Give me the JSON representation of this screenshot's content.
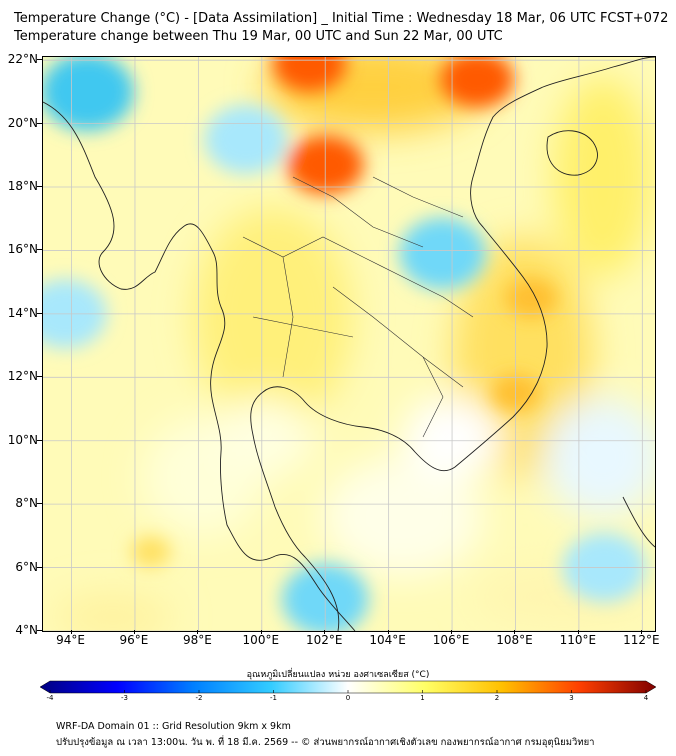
{
  "title": {
    "line1": "Temperature Change (°C) - [Data Assimilation] _ Initial Time : Wednesday 18 Mar, 06 UTC FCST+072",
    "line2": "Temperature change between Thu 19 Mar, 00 UTC and Sun 22 Mar, 00 UTC"
  },
  "map": {
    "lat_labels": [
      "22°N",
      "20°N",
      "18°N",
      "16°N",
      "14°N",
      "12°N",
      "10°N",
      "8°N",
      "6°N",
      "4°N"
    ],
    "lon_labels": [
      "94°E",
      "96°E",
      "98°E",
      "100°E",
      "102°E",
      "104°E",
      "106°E",
      "108°E",
      "110°E",
      "112°E"
    ],
    "lat_values": [
      22,
      20,
      18,
      16,
      14,
      12,
      10,
      8,
      6,
      4
    ],
    "lon_values": [
      94,
      96,
      98,
      100,
      102,
      104,
      106,
      108,
      110,
      112
    ],
    "extent": {
      "lon_min": 93.1,
      "lon_max": 112.4,
      "lat_min": 4.0,
      "lat_max": 22.1
    },
    "hotspots": [
      {
        "lon": 101.5,
        "lat": 21.9,
        "value": 2.6
      },
      {
        "lon": 102.0,
        "lat": 18.7,
        "value": 2.7
      },
      {
        "lon": 106.8,
        "lat": 21.4,
        "value": 2.6
      },
      {
        "lon": 108.5,
        "lat": 14.5,
        "value": 1.9
      },
      {
        "lon": 108.0,
        "lat": 11.5,
        "value": 1.8
      },
      {
        "lon": 96.5,
        "lat": 6.5,
        "value": 1.5
      }
    ],
    "coldspots": [
      {
        "lon": 94.5,
        "lat": 21.0,
        "value": -1.2
      },
      {
        "lon": 93.8,
        "lat": 14.0,
        "value": -0.9
      },
      {
        "lon": 105.7,
        "lat": 15.9,
        "value": -1.0
      },
      {
        "lon": 102.0,
        "lat": 5.0,
        "value": -1.0
      },
      {
        "lon": 99.5,
        "lat": 19.5,
        "value": -0.9
      },
      {
        "lon": 110.8,
        "lat": 6.0,
        "value": -0.9
      }
    ]
  },
  "colorbar": {
    "title": "อุณหภูมิเปลี่ยนแปลง หน่วย องศาเซลเซียส (°C)",
    "ticks": [
      "-4",
      "-3",
      "-2",
      "-1",
      "0",
      "1",
      "2",
      "3",
      "4"
    ],
    "range": [
      -4,
      4
    ],
    "colors": [
      "#000080",
      "#0000ff",
      "#0080ff",
      "#33ccff",
      "#ffffff",
      "#ffff66",
      "#ffc000",
      "#ff4000",
      "#800000"
    ]
  },
  "footer": {
    "line1": "WRF-DA Domain 01 :: Grid Resolution 9km x 9km",
    "line2": "ปรับปรุงข้อมูล ณ เวลา 13:00น. วัน พ. ที่ 18 มี.ค. 2569 -- © ส่วนพยากรณ์อากาศเชิงตัวเลข กองพยากรณ์อากาศ กรมอุตุนิยมวิทยา"
  }
}
